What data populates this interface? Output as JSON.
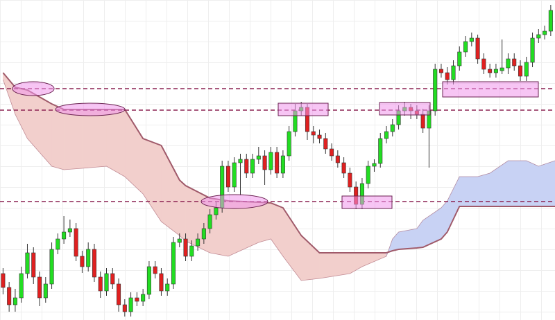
{
  "chart_data": {
    "type": "candlestick",
    "xlim": [
      -0.5,
      90.7
    ],
    "ylim": [
      0,
      462
    ],
    "up_color": "#22dd22",
    "down_color": "#e02020",
    "x": [
      0,
      1,
      2,
      3,
      4,
      5,
      6,
      7,
      8,
      9,
      10,
      11,
      12,
      13,
      14,
      15,
      16,
      17,
      18,
      19,
      20,
      21,
      22,
      23,
      24,
      25,
      26,
      27,
      28,
      29,
      30,
      31,
      32,
      33,
      34,
      35,
      36,
      37,
      38,
      39,
      40,
      41,
      42,
      43,
      44,
      45,
      46,
      47,
      48,
      49,
      50,
      51,
      52,
      53,
      54,
      55,
      56,
      57,
      58,
      59,
      60,
      61,
      62,
      63,
      64,
      65,
      66,
      67,
      68,
      69,
      70,
      71,
      72,
      73,
      74,
      75,
      76,
      77,
      78,
      79,
      80,
      81,
      82,
      83,
      84,
      85,
      86,
      87,
      88,
      89,
      90
    ],
    "ohlc": [
      [
        67,
        75,
        37,
        47
      ],
      [
        47,
        55,
        12,
        22
      ],
      [
        22,
        45,
        12,
        32
      ],
      [
        32,
        77,
        25,
        67
      ],
      [
        67,
        110,
        60,
        97
      ],
      [
        97,
        105,
        52,
        62
      ],
      [
        62,
        70,
        20,
        32
      ],
      [
        32,
        62,
        25,
        52
      ],
      [
        52,
        112,
        45,
        102
      ],
      [
        102,
        125,
        95,
        117
      ],
      [
        117,
        150,
        110,
        127
      ],
      [
        127,
        145,
        120,
        132
      ],
      [
        132,
        140,
        85,
        92
      ],
      [
        92,
        100,
        68,
        77
      ],
      [
        77,
        112,
        70,
        102
      ],
      [
        102,
        110,
        55,
        62
      ],
      [
        62,
        70,
        32,
        42
      ],
      [
        42,
        75,
        35,
        67
      ],
      [
        67,
        75,
        45,
        52
      ],
      [
        52,
        60,
        12,
        22
      ],
      [
        22,
        30,
        5,
        12
      ],
      [
        12,
        40,
        5,
        32
      ],
      [
        32,
        40,
        20,
        27
      ],
      [
        27,
        45,
        20,
        37
      ],
      [
        37,
        85,
        30,
        77
      ],
      [
        77,
        85,
        60,
        67
      ],
      [
        67,
        75,
        35,
        42
      ],
      [
        42,
        60,
        35,
        52
      ],
      [
        52,
        120,
        45,
        112
      ],
      [
        112,
        125,
        105,
        117
      ],
      [
        117,
        125,
        85,
        92
      ],
      [
        92,
        115,
        85,
        107
      ],
      [
        107,
        125,
        100,
        117
      ],
      [
        117,
        140,
        110,
        132
      ],
      [
        132,
        160,
        125,
        152
      ],
      [
        152,
        170,
        145,
        162
      ],
      [
        162,
        230,
        155,
        222
      ],
      [
        222,
        230,
        185,
        192
      ],
      [
        192,
        235,
        185,
        227
      ],
      [
        227,
        240,
        180,
        232
      ],
      [
        232,
        240,
        205,
        212
      ],
      [
        212,
        240,
        205,
        232
      ],
      [
        232,
        250,
        225,
        237
      ],
      [
        237,
        245,
        195,
        217
      ],
      [
        217,
        250,
        210,
        242
      ],
      [
        242,
        250,
        205,
        212
      ],
      [
        212,
        245,
        205,
        237
      ],
      [
        237,
        280,
        230,
        272
      ],
      [
        272,
        312,
        265,
        302
      ],
      [
        302,
        315,
        295,
        307
      ],
      [
        307,
        312,
        260,
        272
      ],
      [
        272,
        280,
        255,
        267
      ],
      [
        267,
        275,
        255,
        262
      ],
      [
        262,
        270,
        240,
        247
      ],
      [
        247,
        255,
        230,
        237
      ],
      [
        237,
        245,
        220,
        227
      ],
      [
        227,
        235,
        205,
        212
      ],
      [
        212,
        220,
        185,
        192
      ],
      [
        192,
        200,
        160,
        167
      ],
      [
        167,
        205,
        160,
        197
      ],
      [
        197,
        230,
        190,
        222
      ],
      [
        222,
        232,
        214,
        226
      ],
      [
        226,
        270,
        220,
        262
      ],
      [
        262,
        280,
        255,
        272
      ],
      [
        272,
        290,
        265,
        282
      ],
      [
        282,
        310,
        275,
        302
      ],
      [
        302,
        315,
        295,
        307
      ],
      [
        307,
        312,
        290,
        302
      ],
      [
        302,
        310,
        290,
        297
      ],
      [
        297,
        305,
        270,
        277
      ],
      [
        277,
        310,
        220,
        302
      ],
      [
        302,
        370,
        295,
        362
      ],
      [
        362,
        370,
        350,
        357
      ],
      [
        357,
        365,
        340,
        347
      ],
      [
        347,
        375,
        340,
        367
      ],
      [
        367,
        395,
        360,
        387
      ],
      [
        387,
        410,
        380,
        402
      ],
      [
        402,
        415,
        395,
        407
      ],
      [
        407,
        412,
        370,
        377
      ],
      [
        377,
        385,
        355,
        362
      ],
      [
        362,
        370,
        350,
        357
      ],
      [
        357,
        370,
        350,
        362
      ],
      [
        360,
        405,
        355,
        364
      ],
      [
        364,
        385,
        355,
        377
      ],
      [
        377,
        385,
        360,
        367
      ],
      [
        367,
        375,
        345,
        352
      ],
      [
        352,
        380,
        345,
        372
      ],
      [
        372,
        415,
        365,
        407
      ],
      [
        407,
        420,
        400,
        412
      ],
      [
        412,
        425,
        405,
        417
      ],
      [
        417,
        455,
        410,
        447
      ]
    ],
    "cloud": {
      "x": [
        0,
        2,
        4,
        8,
        10,
        13,
        17,
        20,
        23,
        26,
        29,
        30,
        34,
        37,
        42,
        44,
        46,
        49,
        52,
        57,
        59,
        63,
        64,
        65,
        68,
        69,
        72,
        73,
        75,
        78,
        80,
        83,
        86,
        88,
        90.7
      ],
      "span_a": [
        357,
        336,
        332,
        312,
        304,
        304,
        304,
        304,
        262,
        252,
        202,
        194,
        176,
        172,
        170,
        169,
        162,
        122,
        97,
        97,
        97,
        97,
        100,
        102,
        104,
        105,
        117,
        127,
        164,
        164,
        164,
        164,
        164,
        164,
        164
      ],
      "span_b": [
        347,
        297,
        262,
        222,
        217,
        219,
        222,
        207,
        182,
        142,
        122,
        114,
        97,
        92,
        112,
        117,
        92,
        57,
        60,
        67,
        77,
        92,
        117,
        127,
        132,
        144,
        162,
        172,
        207,
        207,
        212,
        230,
        230,
        222,
        230
      ],
      "line_color": "#a05a6a",
      "bear_fill": "#f2cfcc",
      "bull_fill": "#c8d2f4"
    },
    "levels": [
      334,
      303,
      171
    ],
    "level_color": "#8b2252"
  }
}
